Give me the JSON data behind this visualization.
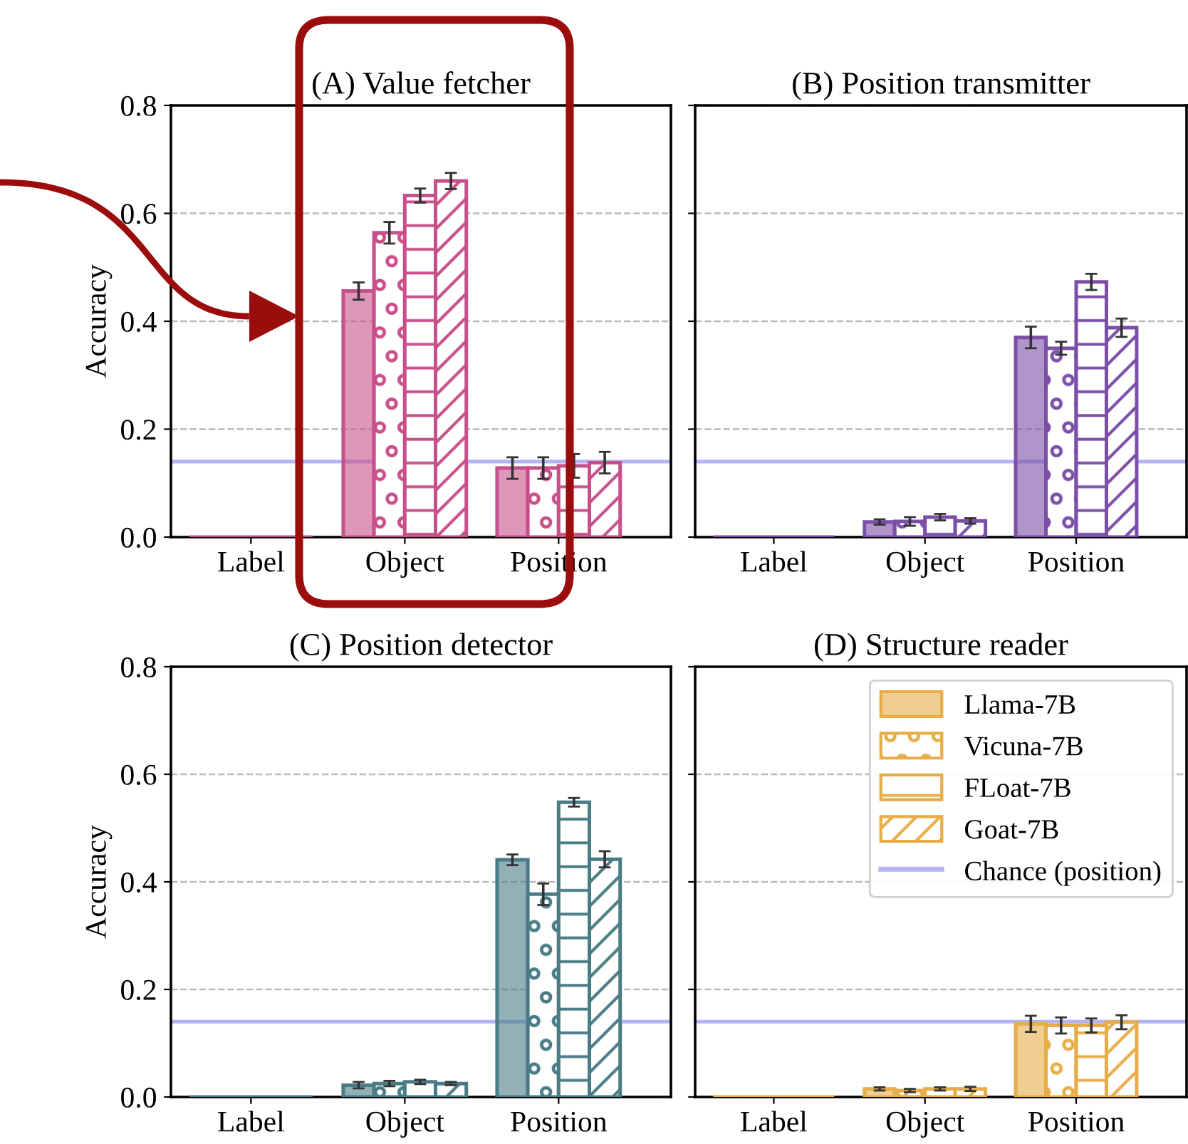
{
  "chart_data": [
    {
      "type": "bar",
      "title": "(A) Value fetcher",
      "ylabel": "Accuracy",
      "categories": [
        "Label",
        "Object",
        "Position"
      ],
      "ylim": [
        0,
        0.8
      ],
      "yticks": [
        {
          "value": 0,
          "label": "0.0"
        },
        0.2,
        0.4,
        0.6,
        0.8
      ],
      "grid": "y",
      "series": [
        {
          "color": "#c8508a",
          "values": [
            0,
            0.456,
            0.128
          ],
          "errors": [
            null,
            0.016,
            0.02
          ]
        },
        {
          "color": "#c8508a",
          "values": [
            0,
            0.564,
            0.128
          ],
          "errors": [
            null,
            0.02,
            0.02
          ]
        },
        {
          "color": "#c8508a",
          "values": [
            0,
            0.633,
            0.132
          ],
          "errors": [
            null,
            0.013,
            0.022
          ]
        },
        {
          "color": "#c8508a",
          "values": [
            0,
            0.66,
            0.138
          ],
          "errors": [
            null,
            0.015,
            0.02
          ]
        }
      ],
      "ref_lines": [
        {
          "axis": "y",
          "value": 0.14,
          "color": "#b4b4f4"
        }
      ]
    },
    {
      "type": "bar",
      "title": "(B) Position transmitter",
      "categories": [
        "Label",
        "Object",
        "Position"
      ],
      "ylim": [
        0,
        0.8
      ],
      "yticks": [
        {
          "value": 0.0,
          "label": null
        },
        {
          "value": 0.2,
          "label": null
        },
        {
          "value": 0.4,
          "label": null
        },
        {
          "value": 0.6,
          "label": null
        },
        {
          "value": 0.8,
          "label": null
        }
      ],
      "grid": "y",
      "tick_labels": "x",
      "series": [
        {
          "color": "#7b4fa8",
          "values": [
            0,
            0.028,
            0.37
          ],
          "errors": [
            null,
            0.005,
            0.02
          ]
        },
        {
          "color": "#7b4fa8",
          "values": [
            0,
            0.029,
            0.35
          ],
          "errors": [
            null,
            0.008,
            0.012
          ]
        },
        {
          "color": "#7b4fa8",
          "values": [
            0,
            0.037,
            0.473
          ],
          "errors": [
            null,
            0.006,
            0.015
          ]
        },
        {
          "color": "#7b4fa8",
          "values": [
            0,
            0.03,
            0.388
          ],
          "errors": [
            null,
            0.005,
            0.017
          ]
        }
      ],
      "ref_lines": [
        {
          "axis": "y",
          "value": 0.14,
          "color": "#b4b4f4"
        }
      ]
    },
    {
      "type": "bar",
      "title": "(C) Position detector",
      "ylabel": "Accuracy",
      "categories": [
        "Label",
        "Object",
        "Position"
      ],
      "ylim": [
        0,
        0.8
      ],
      "yticks": [
        {
          "value": 0,
          "label": "0.0"
        },
        0.2,
        0.4,
        0.6,
        0.8
      ],
      "grid": "y",
      "series": [
        {
          "color": "#4a7c86",
          "values": [
            0,
            0.022,
            0.441
          ],
          "errors": [
            null,
            0.006,
            0.01
          ]
        },
        {
          "color": "#4a7c86",
          "values": [
            0,
            0.025,
            0.377
          ],
          "errors": [
            null,
            0.005,
            0.02
          ]
        },
        {
          "color": "#4a7c86",
          "values": [
            0,
            0.028,
            0.548
          ],
          "errors": [
            null,
            0.004,
            0.008
          ]
        },
        {
          "color": "#4a7c86",
          "values": [
            0,
            0.025,
            0.442
          ],
          "errors": [
            null,
            0.003,
            0.015
          ]
        }
      ],
      "ref_lines": [
        {
          "axis": "y",
          "value": 0.14,
          "color": "#b4b4f4"
        }
      ]
    },
    {
      "type": "bar",
      "title": "(D) Structure reader",
      "categories": [
        "Label",
        "Object",
        "Position"
      ],
      "ylim": [
        0,
        0.8
      ],
      "yticks": [
        {
          "value": 0.0,
          "label": null
        },
        {
          "value": 0.2,
          "label": null
        },
        {
          "value": 0.4,
          "label": null
        },
        {
          "value": 0.6,
          "label": null
        },
        {
          "value": 0.8,
          "label": null
        }
      ],
      "grid": "y",
      "legend": "top right",
      "tick_labels": "x",
      "series": [
        {
          "name": "Llama-7B",
          "color": "#e6ad48",
          "values": [
            0,
            0.015,
            0.136
          ],
          "errors": [
            null,
            0.003,
            0.015
          ]
        },
        {
          "name": "Vicuna-7B",
          "color": "#e6ad48",
          "values": [
            0,
            0.012,
            0.133
          ],
          "errors": [
            null,
            0.003,
            0.015
          ]
        },
        {
          "name": "FLoat-7B",
          "color": "#e6ad48",
          "values": [
            0,
            0.015,
            0.133
          ],
          "errors": [
            null,
            0.003,
            0.013
          ]
        },
        {
          "name": "Goat-7B",
          "color": "#e6ad48",
          "values": [
            0,
            0.015,
            0.139
          ],
          "errors": [
            null,
            0.004,
            0.013
          ]
        }
      ],
      "ref_lines": [
        {
          "axis": "y",
          "value": 0.14,
          "label": "Chance (position)",
          "color": "#b4b4f4"
        }
      ]
    }
  ]
}
